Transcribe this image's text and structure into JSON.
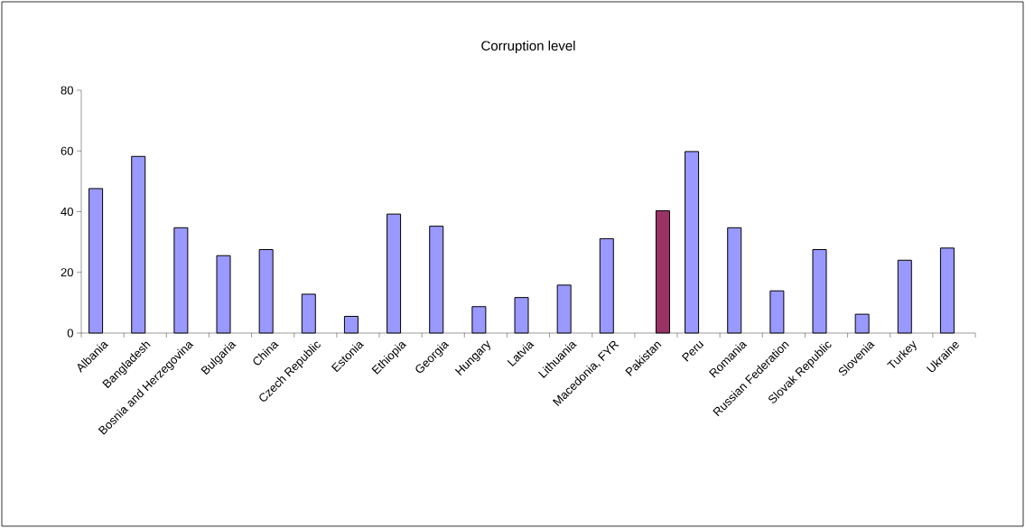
{
  "chart_data": {
    "type": "bar",
    "title": "Corruption level",
    "categories": [
      "Albania",
      "Bangladesh",
      "Bosnia and Herzegovina",
      "Bulgaria",
      "China",
      "Czech Republic",
      "Estonia",
      "Ethiopia",
      "Georgia",
      "Hungary",
      "Latvia",
      "Lithuania",
      "Macedonia, FYR",
      "Pakistan",
      "Peru",
      "Romania",
      "Russian Federation",
      "Slovak Republic",
      "Slovenia",
      "Turkey",
      "Ukraine"
    ],
    "series": [
      {
        "color": "#9999ff",
        "values": [
          47.6,
          58.2,
          34.7,
          25.5,
          27.5,
          12.8,
          5.5,
          39.2,
          35.2,
          8.7,
          11.7,
          15.8,
          31.1,
          null,
          59.8,
          34.7,
          13.9,
          27.5,
          6.2,
          24.0,
          28.0
        ]
      },
      {
        "color": "#993366",
        "values": [
          null,
          null,
          null,
          null,
          null,
          null,
          null,
          null,
          null,
          null,
          null,
          null,
          null,
          40.3,
          null,
          null,
          null,
          null,
          null,
          null,
          null
        ]
      }
    ],
    "ylim": [
      0,
      80
    ],
    "yticks": [
      0,
      20,
      40,
      60,
      80
    ],
    "grid": false,
    "legend": false
  }
}
